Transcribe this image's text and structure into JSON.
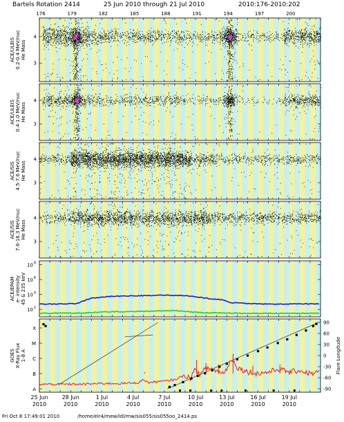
{
  "header": {
    "title_left": "Bartels Rotation 2414",
    "title_mid": "25 Jun 2010 through 21 Jul 2010",
    "title_right": "2010:176-2010:202"
  },
  "footer": {
    "timestamp": "Fri Oct  8 17:49:01 2010",
    "path": "/home/elr4/mew/idl/mw/sis055/sis055oo_2414.ps"
  },
  "colors": {
    "grid_yellow": "#f2f2a0",
    "grid_cyan": "#c8f0f0",
    "points": "#000000",
    "core_magenta": "#cc44cc",
    "epam_blue": "#1a1acc",
    "epam_green": "#22cc22",
    "goes_red": "#e02020"
  },
  "chart_data": {
    "type": "scatter",
    "doy_ticks": [
      "176",
      "179",
      "182",
      "185",
      "188",
      "191",
      "194",
      "197",
      "200"
    ],
    "date_ticks": [
      {
        "day": "25 Jun",
        "year": "2010"
      },
      {
        "day": "28 Jun",
        "year": "2010"
      },
      {
        "day": "1 Jul",
        "year": "2010"
      },
      {
        "day": "4 Jul",
        "year": "2010"
      },
      {
        "day": "7 Jul",
        "year": "2010"
      },
      {
        "day": "10 Jul",
        "year": "2010"
      },
      {
        "day": "13 Jul",
        "year": "2010"
      },
      {
        "day": "16 Jul",
        "year": "2010"
      },
      {
        "day": "19 Jul",
        "year": "2010"
      }
    ],
    "xlim_doy": [
      176,
      203
    ],
    "panels": [
      {
        "ylabel_lines": [
          "ACE/ULEIS",
          "0.2-0.4 MeV/nuc",
          "He Mass"
        ],
        "yticks": [
          "4",
          "3"
        ],
        "ylim": [
          2.3,
          4.7
        ],
        "bands": [
          {
            "start": 176.3,
            "end": 180.8,
            "density": 3
          },
          {
            "start": 180.8,
            "end": 187.0,
            "density": 1.4
          },
          {
            "start": 187.0,
            "end": 193.5,
            "density": 1.1
          },
          {
            "start": 193.5,
            "end": 195.0,
            "density": 3
          },
          {
            "start": 195.0,
            "end": 199.5,
            "density": 0.7
          },
          {
            "start": 199.5,
            "end": 203.0,
            "density": 2.5
          }
        ],
        "spikes": [
          {
            "doy": 179.5,
            "strength": 1.0,
            "core": true
          },
          {
            "doy": 194.3,
            "strength": 1.0,
            "core": true
          }
        ]
      },
      {
        "ylabel_lines": [
          "ACE/ULEIS",
          "0.4-1.0 MeV/nuc",
          "He Mass"
        ],
        "yticks": [
          "4",
          "3"
        ],
        "ylim": [
          2.3,
          4.7
        ],
        "bands": [
          {
            "start": 176.3,
            "end": 180.5,
            "density": 1.8
          },
          {
            "start": 180.5,
            "end": 190.0,
            "density": 1.0
          },
          {
            "start": 190.0,
            "end": 193.6,
            "density": 0.5
          },
          {
            "start": 193.6,
            "end": 195.0,
            "density": 1.6
          },
          {
            "start": 195.0,
            "end": 199.5,
            "density": 0.3
          },
          {
            "start": 199.5,
            "end": 203.0,
            "density": 1.8
          }
        ],
        "spikes": [
          {
            "doy": 179.6,
            "strength": 0.8,
            "core": true
          },
          {
            "doy": 194.3,
            "strength": 0.6,
            "core": false
          }
        ]
      },
      {
        "ylabel_lines": [
          "ACE/SIS",
          "4.5-7.6 MeV/nuc",
          "He Mass"
        ],
        "yticks": [
          "4",
          "3"
        ],
        "ylim": [
          2.3,
          4.7
        ],
        "bands": [
          {
            "start": 176.0,
            "end": 179.0,
            "density": 1.0
          },
          {
            "start": 179.0,
            "end": 190.5,
            "density": 4.2
          },
          {
            "start": 190.5,
            "end": 193.0,
            "density": 1.6
          },
          {
            "start": 193.0,
            "end": 203.0,
            "density": 0.9
          }
        ],
        "spikes": []
      },
      {
        "ylabel_lines": [
          "ACE/SIS",
          "7.6-16.3 MeV/nuc",
          "He Mass"
        ],
        "yticks": [
          "4",
          "3"
        ],
        "ylim": [
          2.3,
          4.7
        ],
        "bands": [
          {
            "start": 176.0,
            "end": 179.0,
            "density": 1.0
          },
          {
            "start": 179.0,
            "end": 192.0,
            "density": 2.4
          },
          {
            "start": 192.0,
            "end": 203.0,
            "density": 1.3
          }
        ],
        "spikes": []
      }
    ],
    "epam": {
      "ylabel_lines": [
        "ACE/EPAM",
        "e- intensity",
        "45 & 235 keV"
      ],
      "yticks": [
        {
          "base": "10",
          "exp": "8"
        },
        {
          "base": "10",
          "exp": "6"
        },
        {
          "base": "10",
          "exp": "4"
        },
        {
          "base": "10",
          "exp": "2"
        }
      ],
      "ylim_log": [
        1,
        8.5
      ],
      "series": [
        {
          "name": "45 keV",
          "color_key": "epam_blue",
          "doy": [
            176,
            179.5,
            181,
            183,
            185,
            188,
            190,
            191.5,
            192.5,
            193.5,
            194.5,
            195,
            196,
            199,
            203
          ],
          "log_value": [
            2.7,
            2.75,
            3.5,
            3.75,
            3.8,
            3.9,
            3.85,
            3.6,
            3.4,
            3.3,
            2.85,
            2.9,
            2.75,
            2.7,
            2.75
          ]
        },
        {
          "name": "235 keV",
          "color_key": "epam_green",
          "doy": [
            176,
            180,
            182,
            186,
            189,
            191,
            192.5,
            194,
            197,
            203
          ],
          "log_value": [
            1.5,
            1.5,
            1.65,
            1.75,
            1.85,
            1.6,
            1.55,
            1.5,
            1.45,
            1.5
          ]
        }
      ]
    },
    "goes": {
      "ylabel_lines": [
        "GOES",
        "X-Ray Flux",
        "1-8 A"
      ],
      "yticks_left": [
        "X",
        "M",
        "C",
        "B",
        "A"
      ],
      "right_ylabel": "Flare Longitude",
      "yticks_right": [
        "90",
        "60",
        "30",
        "0",
        "-30",
        "-60",
        "-90"
      ],
      "longitude_lines": [
        {
          "doy": [
            177.8,
            187.4
          ],
          "lon": [
            -80,
            90
          ]
        },
        {
          "doy": [
            184.2,
            186.9
          ],
          "lon": [
            51,
            56
          ]
        },
        {
          "doy": [
            188.3,
            202.8
          ],
          "lon": [
            -90,
            90
          ]
        }
      ],
      "flare_markers_lon": [
        {
          "doy": 176.4,
          "lon": 85
        },
        {
          "doy": 176.6,
          "lon": 80
        },
        {
          "doy": 188.5,
          "lon": -85
        },
        {
          "doy": 189.0,
          "lon": -80
        },
        {
          "doy": 189.8,
          "lon": -72
        },
        {
          "doy": 190.6,
          "lon": -62
        },
        {
          "doy": 191.2,
          "lon": -55
        },
        {
          "doy": 191.9,
          "lon": -48
        },
        {
          "doy": 192.6,
          "lon": -40
        },
        {
          "doy": 193.3,
          "lon": -30
        },
        {
          "doy": 194.0,
          "lon": -22
        },
        {
          "doy": 195.0,
          "lon": -10
        },
        {
          "doy": 196.0,
          "lon": 0
        },
        {
          "doy": 197.0,
          "lon": 12
        },
        {
          "doy": 197.9,
          "lon": 22
        },
        {
          "doy": 198.9,
          "lon": 34
        },
        {
          "doy": 199.8,
          "lon": 44
        },
        {
          "doy": 200.7,
          "lon": 56
        },
        {
          "doy": 201.6,
          "lon": 68
        },
        {
          "doy": 202.3,
          "lon": 80
        },
        {
          "doy": 202.6,
          "lon": 86
        }
      ],
      "flare_markers_bottom": [
        189.5,
        190.5,
        192.5,
        193.5,
        195.8,
        198.5,
        200.5
      ],
      "xray_log_level": {
        "doy": [
          176,
          178,
          180,
          182,
          184,
          185.5,
          186,
          186.5,
          187,
          188,
          189,
          190,
          190.5,
          191,
          191.5,
          192,
          193,
          193.5,
          194,
          194.5,
          195,
          196,
          197,
          198,
          199,
          200,
          201,
          202,
          203
        ],
        "level": [
          0.3,
          0.3,
          0.3,
          0.35,
          0.35,
          0.4,
          0.6,
          0.4,
          0.45,
          0.5,
          0.6,
          0.9,
          0.7,
          1.3,
          0.9,
          1.4,
          1.2,
          1.0,
          1.3,
          2.0,
          1.4,
          1.1,
          1.0,
          1.1,
          1.3,
          1.1,
          1.2,
          1.0,
          1.1
        ]
      },
      "xray_spikes": [
        {
          "doy": 186.1,
          "level": 1.1
        },
        {
          "doy": 191.1,
          "level": 1.9
        },
        {
          "doy": 192.0,
          "level": 1.7
        },
        {
          "doy": 193.2,
          "level": 1.6
        },
        {
          "doy": 194.6,
          "level": 2.3
        },
        {
          "doy": 196.5,
          "level": 1.5
        },
        {
          "doy": 199.1,
          "level": 1.6
        }
      ]
    }
  }
}
